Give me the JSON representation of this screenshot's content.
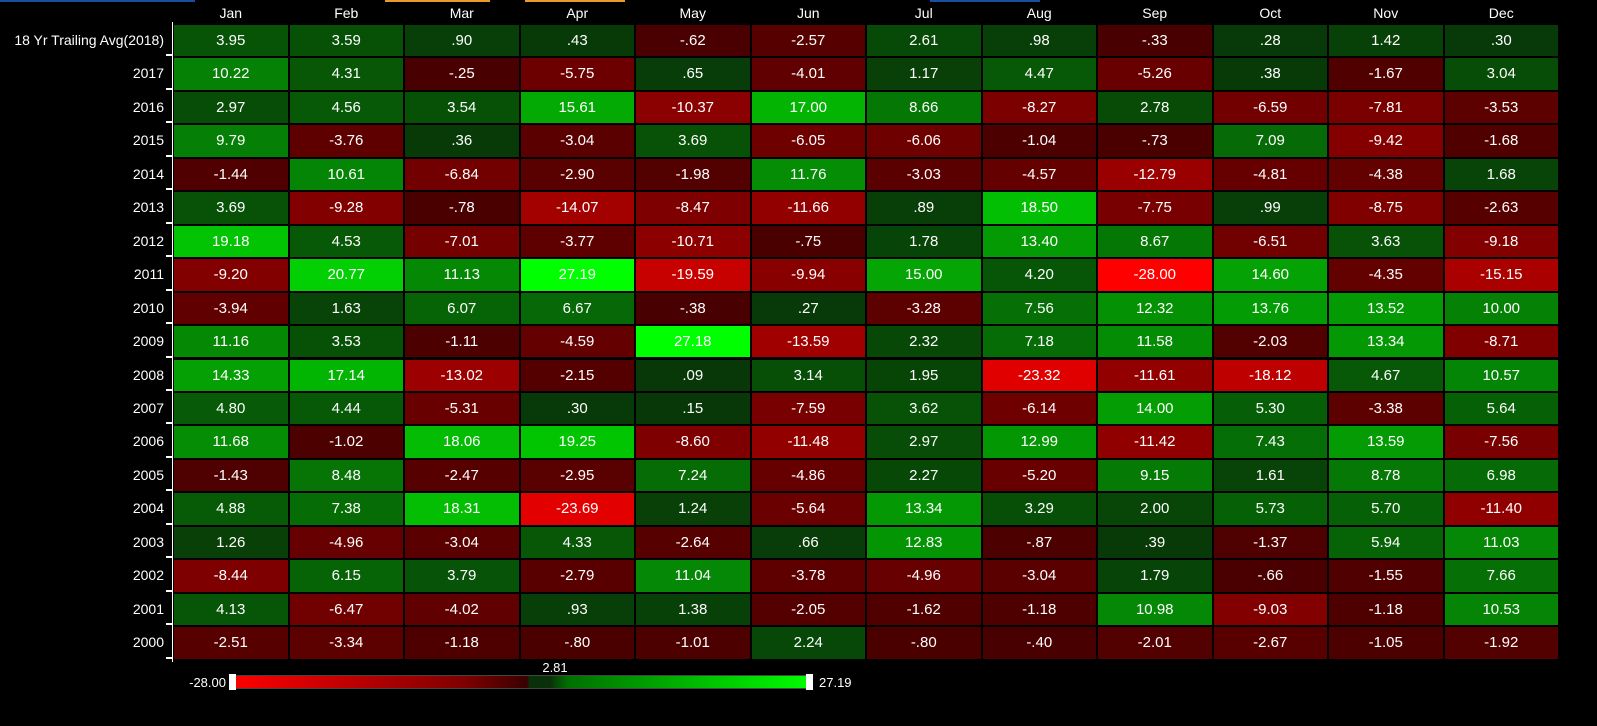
{
  "header": {
    "months": [
      "Jan",
      "Feb",
      "Mar",
      "Apr",
      "May",
      "Jun",
      "Jul",
      "Aug",
      "Sep",
      "Oct",
      "Nov",
      "Dec"
    ]
  },
  "table": {
    "rows": [
      {
        "label": "18 Yr Trailing Avg(2018)",
        "cells": [
          "3.95",
          "3.59",
          ".90",
          ".43",
          "-.62",
          "-2.57",
          "2.61",
          ".98",
          "-.33",
          ".28",
          "1.42",
          ".30"
        ]
      },
      {
        "label": "2017",
        "cells": [
          "10.22",
          "4.31",
          "-.25",
          "-5.75",
          ".65",
          "-4.01",
          "1.17",
          "4.47",
          "-5.26",
          ".38",
          "-1.67",
          "3.04"
        ]
      },
      {
        "label": "2016",
        "cells": [
          "2.97",
          "4.56",
          "3.54",
          "15.61",
          "-10.37",
          "17.00",
          "8.66",
          "-8.27",
          "2.78",
          "-6.59",
          "-7.81",
          "-3.53"
        ]
      },
      {
        "label": "2015",
        "cells": [
          "9.79",
          "-3.76",
          ".36",
          "-3.04",
          "3.69",
          "-6.05",
          "-6.06",
          "-1.04",
          "-.73",
          "7.09",
          "-9.42",
          "-1.68"
        ]
      },
      {
        "label": "2014",
        "cells": [
          "-1.44",
          "10.61",
          "-6.84",
          "-2.90",
          "-1.98",
          "11.76",
          "-3.03",
          "-4.57",
          "-12.79",
          "-4.81",
          "-4.38",
          "1.68"
        ]
      },
      {
        "label": "2013",
        "cells": [
          "3.69",
          "-9.28",
          "-.78",
          "-14.07",
          "-8.47",
          "-11.66",
          ".89",
          "18.50",
          "-7.75",
          ".99",
          "-8.75",
          "-2.63"
        ]
      },
      {
        "label": "2012",
        "cells": [
          "19.18",
          "4.53",
          "-7.01",
          "-3.77",
          "-10.71",
          "-.75",
          "1.78",
          "13.40",
          "8.67",
          "-6.51",
          "3.63",
          "-9.18"
        ]
      },
      {
        "label": "2011",
        "cells": [
          "-9.20",
          "20.77",
          "11.13",
          "27.19",
          "-19.59",
          "-9.94",
          "15.00",
          "4.20",
          "-28.00",
          "14.60",
          "-4.35",
          "-15.15"
        ]
      },
      {
        "label": "2010",
        "cells": [
          "-3.94",
          "1.63",
          "6.07",
          "6.67",
          "-.38",
          ".27",
          "-3.28",
          "7.56",
          "12.32",
          "13.76",
          "13.52",
          "10.00"
        ]
      },
      {
        "label": "2009",
        "cells": [
          "11.16",
          "3.53",
          "-1.11",
          "-4.59",
          "27.18",
          "-13.59",
          "2.32",
          "7.18",
          "11.58",
          "-2.03",
          "13.34",
          "-8.71"
        ]
      },
      {
        "label": "2008",
        "cells": [
          "14.33",
          "17.14",
          "-13.02",
          "-2.15",
          ".09",
          "3.14",
          "1.95",
          "-23.32",
          "-11.61",
          "-18.12",
          "4.67",
          "10.57"
        ]
      },
      {
        "label": "2007",
        "cells": [
          "4.80",
          "4.44",
          "-5.31",
          ".30",
          ".15",
          "-7.59",
          "3.62",
          "-6.14",
          "14.00",
          "5.30",
          "-3.38",
          "5.64"
        ]
      },
      {
        "label": "2006",
        "cells": [
          "11.68",
          "-1.02",
          "18.06",
          "19.25",
          "-8.60",
          "-11.48",
          "2.97",
          "12.99",
          "-11.42",
          "7.43",
          "13.59",
          "-7.56"
        ]
      },
      {
        "label": "2005",
        "cells": [
          "-1.43",
          "8.48",
          "-2.47",
          "-2.95",
          "7.24",
          "-4.86",
          "2.27",
          "-5.20",
          "9.15",
          "1.61",
          "8.78",
          "6.98"
        ]
      },
      {
        "label": "2004",
        "cells": [
          "4.88",
          "7.38",
          "18.31",
          "-23.69",
          "1.24",
          "-5.64",
          "13.34",
          "3.29",
          "2.00",
          "5.73",
          "5.70",
          "-11.40"
        ]
      },
      {
        "label": "2003",
        "cells": [
          "1.26",
          "-4.96",
          "-3.04",
          "4.33",
          "-2.64",
          ".66",
          "12.83",
          "-.87",
          ".39",
          "-1.37",
          "5.94",
          "11.03"
        ]
      },
      {
        "label": "2002",
        "cells": [
          "-8.44",
          "6.15",
          "3.79",
          "-2.79",
          "11.04",
          "-3.78",
          "-4.96",
          "-3.04",
          "1.79",
          "-.66",
          "-1.55",
          "7.66"
        ]
      },
      {
        "label": "2001",
        "cells": [
          "4.13",
          "-6.47",
          "-4.02",
          ".93",
          "1.38",
          "-2.05",
          "-1.62",
          "-1.18",
          "10.98",
          "-9.03",
          "-1.18",
          "10.53"
        ]
      },
      {
        "label": "2000",
        "cells": [
          "-2.51",
          "-3.34",
          "-1.18",
          "-.80",
          "-1.01",
          "2.24",
          "-.80",
          "-.40",
          "-2.01",
          "-2.67",
          "-1.05",
          "-1.92"
        ]
      }
    ]
  },
  "legend": {
    "min": "-28.00",
    "mid": "2.81",
    "max": "27.19"
  }
}
